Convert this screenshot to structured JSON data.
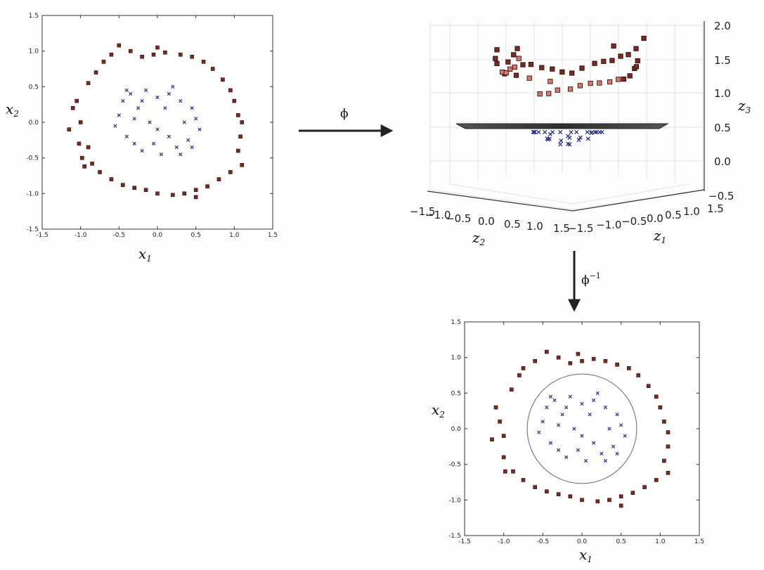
{
  "arrows": {
    "forward_label": "ϕ",
    "inverse_label": "ϕ",
    "inverse_superscript": "−1"
  },
  "colors": {
    "outer_square": "#7a2a20",
    "outer_square_light": "#d9776a",
    "inner_cross": "#2b2f8a",
    "plane": "#3c3c3c"
  },
  "plots": {
    "input": {
      "xlabel": "x",
      "xlabel_sub": "1",
      "ylabel": "x",
      "ylabel_sub": "2",
      "xticks": [
        "-1.5",
        "-1.0",
        "-0.5",
        "0.0",
        "0.5",
        "1.0",
        "1.5"
      ],
      "yticks": [
        "1.5",
        "1.0",
        "0.5",
        "0.0",
        "-0.5",
        "-1.0",
        "-1.5"
      ]
    },
    "feature_3d": {
      "z1_label": "z",
      "z1_sub": "1",
      "z2_label": "z",
      "z2_sub": "2",
      "z3_label": "z",
      "z3_sub": "3",
      "z3_ticks": [
        "2.0",
        "1.5",
        "1.0",
        "0.5",
        "0.0",
        "−0.5"
      ],
      "z2_ticks": [
        "−1.5",
        "−1.0",
        "−0.5",
        "0.0",
        "0.5",
        "1.0",
        "1.5"
      ],
      "z1_ticks": [
        "−1.5",
        "−1.0",
        "−0.5",
        "0.0",
        "0.5",
        "1.0",
        "1.5"
      ]
    },
    "output": {
      "xlabel": "x",
      "xlabel_sub": "1",
      "ylabel": "x",
      "ylabel_sub": "2",
      "xticks": [
        "-1.5",
        "-1.0",
        "-0.5",
        "0.0",
        "0.5",
        "1.0",
        "1.5"
      ],
      "yticks": [
        "1.5",
        "1.0",
        "0.5",
        "0.0",
        "-0.5",
        "-1.0",
        "-1.5"
      ]
    }
  },
  "chart_data": [
    {
      "type": "scatter",
      "xlim": [
        -1.5,
        1.5
      ],
      "ylim": [
        -1.5,
        1.5
      ],
      "series": [
        {
          "marker": "square",
          "points": [
            [
              -1.1,
              0.2
            ],
            [
              -1.05,
              0.3
            ],
            [
              -1.0,
              0.0
            ],
            [
              -1.02,
              -0.3
            ],
            [
              -0.98,
              -0.5
            ],
            [
              -0.95,
              -0.62
            ],
            [
              -0.9,
              0.55
            ],
            [
              -0.8,
              0.7
            ],
            [
              -0.7,
              0.85
            ],
            [
              -0.6,
              0.95
            ],
            [
              -0.5,
              1.08
            ],
            [
              -0.35,
              1.0
            ],
            [
              -0.2,
              0.92
            ],
            [
              -0.05,
              0.95
            ],
            [
              0.1,
              0.98
            ],
            [
              0.3,
              0.95
            ],
            [
              0.45,
              0.92
            ],
            [
              0.6,
              0.85
            ],
            [
              0.72,
              0.75
            ],
            [
              0.85,
              0.6
            ],
            [
              0.95,
              0.45
            ],
            [
              1.0,
              0.3
            ],
            [
              1.05,
              0.1
            ],
            [
              1.1,
              0.0
            ],
            [
              1.08,
              -0.2
            ],
            [
              1.05,
              -0.4
            ],
            [
              1.1,
              -0.6
            ],
            [
              0.95,
              -0.7
            ],
            [
              0.8,
              -0.8
            ],
            [
              0.65,
              -0.9
            ],
            [
              0.5,
              -0.95
            ],
            [
              0.35,
              -1.0
            ],
            [
              0.2,
              -1.02
            ],
            [
              0.0,
              -1.0
            ],
            [
              -0.15,
              -0.95
            ],
            [
              -0.3,
              -0.92
            ],
            [
              -0.45,
              -0.88
            ],
            [
              -0.6,
              -0.8
            ],
            [
              -0.75,
              -0.7
            ],
            [
              -0.85,
              -0.58
            ],
            [
              -0.9,
              -0.35
            ],
            [
              -1.15,
              -0.1
            ],
            [
              0.5,
              -1.05
            ],
            [
              0.0,
              1.05
            ]
          ]
        },
        {
          "marker": "cross",
          "points": [
            [
              -0.5,
              0.1
            ],
            [
              -0.45,
              0.3
            ],
            [
              -0.4,
              -0.2
            ],
            [
              -0.35,
              0.4
            ],
            [
              -0.3,
              -0.3
            ],
            [
              -0.25,
              0.2
            ],
            [
              -0.2,
              -0.4
            ],
            [
              -0.15,
              0.45
            ],
            [
              -0.1,
              0.0
            ],
            [
              -0.05,
              -0.3
            ],
            [
              0.0,
              0.35
            ],
            [
              0.05,
              -0.45
            ],
            [
              0.1,
              0.2
            ],
            [
              0.15,
              -0.2
            ],
            [
              0.2,
              0.5
            ],
            [
              0.25,
              -0.35
            ],
            [
              0.3,
              0.3
            ],
            [
              0.35,
              0.0
            ],
            [
              0.4,
              -0.25
            ],
            [
              0.45,
              0.2
            ],
            [
              0.5,
              0.05
            ],
            [
              0.55,
              -0.1
            ],
            [
              -0.55,
              -0.05
            ],
            [
              -0.3,
              0.05
            ],
            [
              0.0,
              -0.1
            ],
            [
              0.3,
              -0.45
            ],
            [
              -0.2,
              0.3
            ],
            [
              0.15,
              0.4
            ],
            [
              -0.4,
              0.45
            ],
            [
              0.45,
              -0.35
            ]
          ]
        }
      ]
    },
    {
      "type": "scatter",
      "z_plane": 0.6,
      "zlim": [
        -0.5,
        2.0
      ],
      "series": [
        {
          "marker": "square",
          "note_range_z": [
            0.9,
            2.0
          ]
        },
        {
          "marker": "cross",
          "note_range_z": [
            0.0,
            0.5
          ]
        }
      ]
    },
    {
      "type": "scatter",
      "xlim": [
        -1.5,
        1.5
      ],
      "ylim": [
        -1.5,
        1.5
      ],
      "decision_boundary_radius": 0.7,
      "series": [
        {
          "marker": "square",
          "points": [
            [
              -1.1,
              0.3
            ],
            [
              -1.05,
              0.1
            ],
            [
              -1.0,
              -0.1
            ],
            [
              -1.0,
              -0.4
            ],
            [
              -0.98,
              -0.6
            ],
            [
              -0.9,
              0.55
            ],
            [
              -0.8,
              0.75
            ],
            [
              -0.75,
              0.85
            ],
            [
              -0.6,
              0.95
            ],
            [
              -0.45,
              1.08
            ],
            [
              -0.3,
              1.0
            ],
            [
              -0.15,
              0.92
            ],
            [
              0.0,
              0.95
            ],
            [
              0.15,
              0.98
            ],
            [
              0.3,
              0.95
            ],
            [
              0.45,
              0.9
            ],
            [
              0.6,
              0.85
            ],
            [
              0.72,
              0.75
            ],
            [
              0.85,
              0.6
            ],
            [
              0.95,
              0.45
            ],
            [
              1.0,
              0.3
            ],
            [
              1.05,
              0.1
            ],
            [
              1.1,
              -0.05
            ],
            [
              1.1,
              -0.25
            ],
            [
              1.05,
              -0.45
            ],
            [
              1.1,
              -0.62
            ],
            [
              0.95,
              -0.72
            ],
            [
              0.8,
              -0.82
            ],
            [
              0.65,
              -0.9
            ],
            [
              0.5,
              -0.95
            ],
            [
              0.35,
              -1.0
            ],
            [
              0.2,
              -1.02
            ],
            [
              0.0,
              -1.0
            ],
            [
              -0.15,
              -0.95
            ],
            [
              -0.3,
              -0.92
            ],
            [
              -0.45,
              -0.88
            ],
            [
              -0.6,
              -0.82
            ],
            [
              -0.75,
              -0.72
            ],
            [
              -0.88,
              -0.6
            ],
            [
              -1.15,
              -0.15
            ],
            [
              0.5,
              -1.08
            ],
            [
              -0.05,
              1.05
            ]
          ]
        },
        {
          "marker": "cross",
          "points": [
            [
              -0.5,
              0.1
            ],
            [
              -0.45,
              0.3
            ],
            [
              -0.4,
              -0.2
            ],
            [
              -0.35,
              0.4
            ],
            [
              -0.3,
              -0.3
            ],
            [
              -0.25,
              0.2
            ],
            [
              -0.2,
              -0.4
            ],
            [
              -0.15,
              0.45
            ],
            [
              -0.1,
              0.0
            ],
            [
              -0.05,
              -0.3
            ],
            [
              0.0,
              0.35
            ],
            [
              0.05,
              -0.45
            ],
            [
              0.1,
              0.2
            ],
            [
              0.15,
              -0.2
            ],
            [
              0.2,
              0.5
            ],
            [
              0.25,
              -0.35
            ],
            [
              0.3,
              0.3
            ],
            [
              0.35,
              0.0
            ],
            [
              0.4,
              -0.25
            ],
            [
              0.45,
              0.2
            ],
            [
              0.5,
              0.05
            ],
            [
              0.55,
              -0.1
            ],
            [
              -0.55,
              -0.05
            ],
            [
              -0.3,
              0.05
            ],
            [
              0.0,
              -0.1
            ],
            [
              0.3,
              -0.45
            ],
            [
              -0.2,
              0.3
            ],
            [
              0.15,
              0.4
            ],
            [
              -0.4,
              0.45
            ],
            [
              0.45,
              -0.35
            ]
          ]
        }
      ]
    }
  ]
}
